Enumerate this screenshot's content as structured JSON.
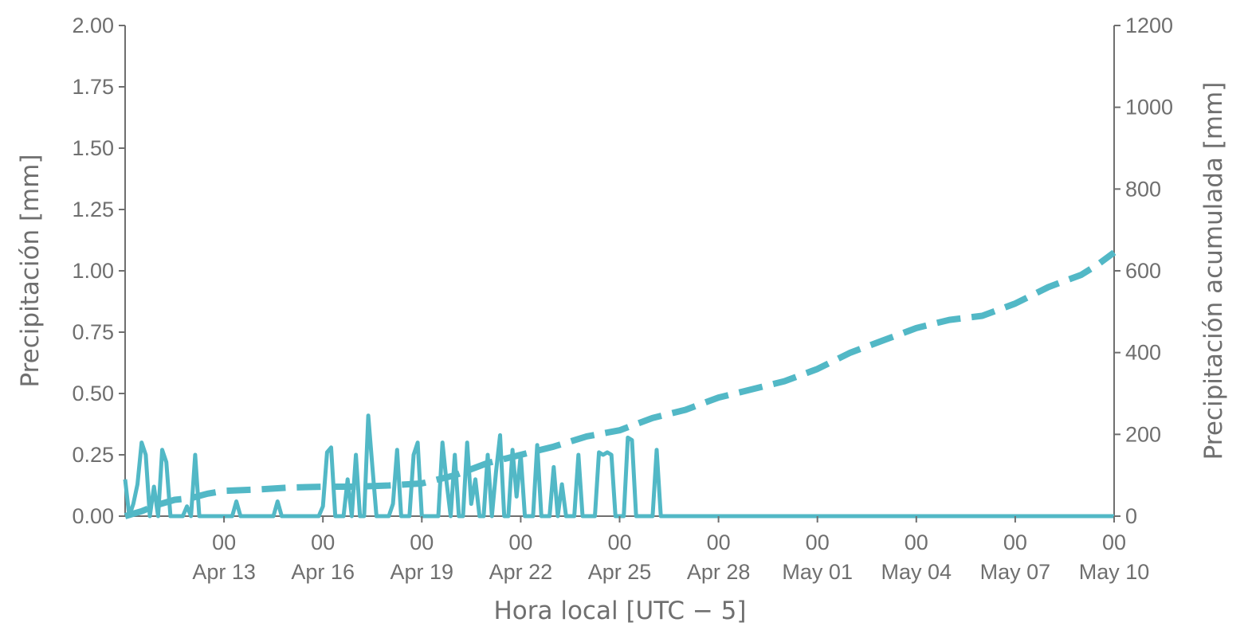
{
  "chart_data": {
    "type": "line",
    "title": "",
    "xlabel": "Hora local [UTC − 5]",
    "ylabel": "Precipitación [mm]",
    "y2label": "Precipitación acumulada [mm]",
    "x_range": [
      "2025-04-10T00:00",
      "2025-05-10T00:00"
    ],
    "ylim": [
      0,
      2.0
    ],
    "y2lim": [
      0,
      1200
    ],
    "grid": false,
    "legend": "none",
    "color": "#52b8c6",
    "x_ticks": [
      {
        "x": "2025-04-13T00:00",
        "hour": "00",
        "date": "Apr 13"
      },
      {
        "x": "2025-04-16T00:00",
        "hour": "00",
        "date": "Apr 16"
      },
      {
        "x": "2025-04-19T00:00",
        "hour": "00",
        "date": "Apr 19"
      },
      {
        "x": "2025-04-22T00:00",
        "hour": "00",
        "date": "Apr 22"
      },
      {
        "x": "2025-04-25T00:00",
        "hour": "00",
        "date": "Apr 25"
      },
      {
        "x": "2025-04-28T00:00",
        "hour": "00",
        "date": "Apr 28"
      },
      {
        "x": "2025-05-01T00:00",
        "hour": "00",
        "date": "May 01"
      },
      {
        "x": "2025-05-04T00:00",
        "hour": "00",
        "date": "May 04"
      },
      {
        "x": "2025-05-07T00:00",
        "hour": "00",
        "date": "May 07"
      },
      {
        "x": "2025-05-10T00:00",
        "hour": "00",
        "date": "May 10"
      }
    ],
    "y_ticks": [
      "0.00",
      "0.25",
      "0.50",
      "0.75",
      "1.00",
      "1.25",
      "1.50",
      "1.75",
      "2.00"
    ],
    "y2_ticks": [
      "0",
      "200",
      "400",
      "600",
      "800",
      "1000",
      "1200"
    ],
    "series": [
      {
        "axis": "left",
        "style": "solid",
        "x": [
          "2025-04-10T00:00",
          "2025-04-10T03:00",
          "2025-04-10T06:00",
          "2025-04-10T09:00",
          "2025-04-10T12:00",
          "2025-04-10T15:00",
          "2025-04-10T18:00",
          "2025-04-10T21:00",
          "2025-04-11T00:00",
          "2025-04-11T03:00",
          "2025-04-11T06:00",
          "2025-04-11T09:00",
          "2025-04-11T12:00",
          "2025-04-11T15:00",
          "2025-04-11T18:00",
          "2025-04-11T21:00",
          "2025-04-12T00:00",
          "2025-04-12T03:00",
          "2025-04-12T06:00",
          "2025-04-12T09:00",
          "2025-04-12T12:00",
          "2025-04-12T15:00",
          "2025-04-12T18:00",
          "2025-04-12T21:00",
          "2025-04-13T00:00",
          "2025-04-13T03:00",
          "2025-04-13T06:00",
          "2025-04-13T09:00",
          "2025-04-13T12:00",
          "2025-04-13T15:00",
          "2025-04-13T18:00",
          "2025-04-13T21:00",
          "2025-04-14T00:00",
          "2025-04-14T03:00",
          "2025-04-14T06:00",
          "2025-04-14T09:00",
          "2025-04-14T12:00",
          "2025-04-14T15:00",
          "2025-04-14T18:00",
          "2025-04-14T21:00",
          "2025-04-15T00:00",
          "2025-04-15T03:00",
          "2025-04-15T06:00",
          "2025-04-15T09:00",
          "2025-04-15T12:00",
          "2025-04-15T15:00",
          "2025-04-15T18:00",
          "2025-04-15T21:00",
          "2025-04-16T00:00",
          "2025-04-16T03:00",
          "2025-04-16T06:00",
          "2025-04-16T09:00",
          "2025-04-16T12:00",
          "2025-04-16T15:00",
          "2025-04-16T18:00",
          "2025-04-16T21:00",
          "2025-04-17T00:00",
          "2025-04-17T03:00",
          "2025-04-17T06:00",
          "2025-04-17T09:00",
          "2025-04-17T12:00",
          "2025-04-17T15:00",
          "2025-04-17T18:00",
          "2025-04-17T21:00",
          "2025-04-18T00:00",
          "2025-04-18T03:00",
          "2025-04-18T06:00",
          "2025-04-18T09:00",
          "2025-04-18T12:00",
          "2025-04-18T15:00",
          "2025-04-18T18:00",
          "2025-04-18T21:00",
          "2025-04-19T00:00",
          "2025-04-19T03:00",
          "2025-04-19T06:00",
          "2025-04-19T09:00",
          "2025-04-19T12:00",
          "2025-04-19T15:00",
          "2025-04-19T18:00",
          "2025-04-19T21:00",
          "2025-04-20T00:00",
          "2025-04-20T03:00",
          "2025-04-20T06:00",
          "2025-04-20T09:00",
          "2025-04-20T12:00",
          "2025-04-20T15:00",
          "2025-04-20T18:00",
          "2025-04-20T21:00",
          "2025-04-21T00:00",
          "2025-04-21T03:00",
          "2025-04-21T06:00",
          "2025-04-21T09:00",
          "2025-04-21T12:00",
          "2025-04-21T15:00",
          "2025-04-21T18:00",
          "2025-04-21T21:00",
          "2025-04-22T00:00",
          "2025-04-22T03:00",
          "2025-04-22T06:00",
          "2025-04-22T09:00",
          "2025-04-22T12:00",
          "2025-04-22T15:00",
          "2025-04-22T18:00",
          "2025-04-22T21:00",
          "2025-04-23T00:00",
          "2025-04-23T03:00",
          "2025-04-23T06:00",
          "2025-04-23T09:00",
          "2025-04-23T12:00",
          "2025-04-23T15:00",
          "2025-04-23T18:00",
          "2025-04-23T21:00",
          "2025-04-24T00:00",
          "2025-04-24T03:00",
          "2025-04-24T06:00",
          "2025-04-24T09:00",
          "2025-04-24T12:00",
          "2025-04-24T15:00",
          "2025-04-24T18:00",
          "2025-04-24T21:00",
          "2025-04-25T00:00",
          "2025-04-25T03:00",
          "2025-04-25T06:00",
          "2025-04-25T09:00",
          "2025-04-25T12:00",
          "2025-04-25T15:00",
          "2025-04-25T18:00",
          "2025-04-25T21:00",
          "2025-04-26T00:00",
          "2025-04-26T03:00",
          "2025-04-26T06:00",
          "2025-04-26T09:00",
          "2025-04-26T12:00",
          "2025-04-26T15:00",
          "2025-04-26T18:00",
          "2025-04-26T21:00",
          "2025-04-27T00:00",
          "2025-04-27T03:00",
          "2025-04-27T06:00",
          "2025-04-27T09:00",
          "2025-04-27T12:00",
          "2025-04-27T15:00",
          "2025-04-27T18:00",
          "2025-04-27T21:00",
          "2025-04-28T00:00",
          "2025-04-28T03:00",
          "2025-04-28T06:00",
          "2025-04-28T09:00",
          "2025-04-28T12:00",
          "2025-04-28T15:00",
          "2025-04-28T18:00",
          "2025-04-28T21:00",
          "2025-04-29T00:00",
          "2025-04-29T03:00",
          "2025-04-29T06:00",
          "2025-04-29T09:00",
          "2025-04-29T12:00",
          "2025-04-29T15:00",
          "2025-04-29T18:00",
          "2025-04-29T21:00",
          "2025-04-30T00:00",
          "2025-04-30T03:00",
          "2025-04-30T06:00",
          "2025-04-30T09:00",
          "2025-04-30T12:00",
          "2025-04-30T15:00",
          "2025-04-30T18:00",
          "2025-04-30T21:00",
          "2025-05-01T00:00",
          "2025-05-01T03:00",
          "2025-05-01T06:00",
          "2025-05-01T09:00",
          "2025-05-01T12:00",
          "2025-05-01T15:00",
          "2025-05-01T18:00",
          "2025-05-01T21:00",
          "2025-05-02T00:00",
          "2025-05-02T03:00",
          "2025-05-02T06:00",
          "2025-05-02T09:00",
          "2025-05-02T12:00",
          "2025-05-02T15:00",
          "2025-05-02T18:00",
          "2025-05-02T21:00",
          "2025-05-03T00:00",
          "2025-05-03T03:00",
          "2025-05-03T06:00",
          "2025-05-03T09:00",
          "2025-05-03T12:00",
          "2025-05-03T15:00",
          "2025-05-03T18:00",
          "2025-05-03T21:00",
          "2025-05-04T00:00",
          "2025-05-04T03:00",
          "2025-05-04T06:00",
          "2025-05-04T09:00",
          "2025-05-04T12:00",
          "2025-05-04T15:00",
          "2025-05-04T18:00",
          "2025-05-04T21:00",
          "2025-05-05T00:00",
          "2025-05-05T03:00",
          "2025-05-05T06:00",
          "2025-05-05T09:00",
          "2025-05-05T12:00",
          "2025-05-05T15:00",
          "2025-05-05T18:00",
          "2025-05-05T21:00",
          "2025-05-06T00:00",
          "2025-05-06T03:00",
          "2025-05-06T06:00",
          "2025-05-06T09:00",
          "2025-05-06T12:00",
          "2025-05-06T15:00",
          "2025-05-06T18:00",
          "2025-05-06T21:00",
          "2025-05-07T00:00",
          "2025-05-07T03:00",
          "2025-05-07T06:00",
          "2025-05-07T09:00",
          "2025-05-07T12:00",
          "2025-05-07T15:00",
          "2025-05-07T18:00",
          "2025-05-07T21:00",
          "2025-05-08T00:00",
          "2025-05-08T03:00",
          "2025-05-08T06:00",
          "2025-05-08T09:00",
          "2025-05-08T12:00",
          "2025-05-08T15:00",
          "2025-05-08T18:00",
          "2025-05-08T21:00",
          "2025-05-09T00:00",
          "2025-05-09T03:00",
          "2025-05-09T06:00",
          "2025-05-09T09:00",
          "2025-05-09T12:00",
          "2025-05-09T15:00",
          "2025-05-09T18:00",
          "2025-05-09T21:00",
          "2025-05-10T00:00"
        ],
        "values": [
          0.15,
          0.0,
          0.05,
          0.13,
          0.3,
          0.25,
          0.0,
          0.12,
          0.0,
          0.27,
          0.22,
          0.0,
          0.0,
          0.0,
          0.0,
          0.04,
          0.0,
          0.25,
          0.0,
          0.0,
          0.0,
          0.0,
          0.0,
          0.0,
          0.0,
          0.0,
          0.0,
          0.06,
          0.0,
          0.0,
          0.0,
          0.0,
          0.0,
          0.0,
          0.0,
          0.0,
          0.0,
          0.06,
          0.0,
          0.0,
          0.0,
          0.0,
          0.0,
          0.0,
          0.0,
          0.0,
          0.0,
          0.0,
          0.04,
          0.26,
          0.28,
          0.0,
          0.0,
          0.0,
          0.15,
          0.0,
          0.25,
          0.0,
          0.0,
          0.41,
          0.2,
          0.0,
          0.0,
          0.0,
          0.0,
          0.05,
          0.27,
          0.0,
          0.0,
          0.0,
          0.25,
          0.3,
          0.0,
          0.0,
          0.0,
          0.0,
          0.0,
          0.3,
          0.14,
          0.0,
          0.25,
          0.0,
          0.0,
          0.3,
          0.05,
          0.15,
          0.0,
          0.0,
          0.25,
          0.0,
          0.18,
          0.33,
          0.0,
          0.0,
          0.27,
          0.08,
          0.25,
          0.0,
          0.0,
          0.0,
          0.29,
          0.0,
          0.0,
          0.0,
          0.2,
          0.0,
          0.13,
          0.0,
          0.0,
          0.0,
          0.25,
          0.0,
          0.0,
          0.0,
          0.0,
          0.26,
          0.25,
          0.26,
          0.25,
          0.0,
          0.0,
          0.0,
          0.32,
          0.31,
          0.0,
          0.0,
          0.0,
          0.0,
          0.0,
          0.27,
          0.0,
          0.0,
          0.0,
          0.0,
          0.0,
          0.0,
          0.0,
          0.0,
          0.0,
          0.0,
          0.0,
          0.0,
          0.0,
          0.0,
          0.0,
          0.0,
          0.0,
          0.0,
          0.0,
          0.0,
          0.0,
          0.0,
          0.0,
          0.0,
          0.0,
          0.0,
          0.0,
          0.0,
          0.0,
          0.0,
          0.0,
          0.0,
          0.0,
          0.0,
          0.0,
          0.0,
          0.0,
          0.0,
          0.0,
          0.0,
          0.0,
          0.0,
          0.0,
          0.0,
          0.0,
          0.0,
          0.0,
          0.0,
          0.0,
          0.0,
          0.0,
          0.0,
          0.0,
          0.0,
          0.0,
          0.0,
          0.0,
          0.0,
          0.0,
          0.0,
          0.0,
          0.0,
          0.0,
          0.0,
          0.0,
          0.0,
          0.0,
          0.0,
          0.0,
          0.0,
          0.0,
          0.0,
          0.0,
          0.0,
          0.0,
          0.0,
          0.0,
          0.0,
          0.0,
          0.0,
          0.0,
          0.0,
          0.0,
          0.0,
          0.0,
          0.0,
          0.0,
          0.0,
          0.0,
          0.0,
          0.0,
          0.0,
          0.0,
          0.0,
          0.0,
          0.0,
          0.0,
          0.0,
          0.0,
          0.0,
          0.0,
          0.0,
          0.0,
          0.0,
          0.0,
          0.0,
          0.0,
          0.0,
          0.0,
          0.0,
          0.0
        ]
      },
      {
        "axis": "right",
        "style": "dashed",
        "x": [
          "2025-04-10T00:00",
          "2025-04-10T12:00",
          "2025-04-11T00:00",
          "2025-04-11T12:00",
          "2025-04-12T00:00",
          "2025-04-12T12:00",
          "2025-04-13T00:00",
          "2025-04-14T00:00",
          "2025-04-15T00:00",
          "2025-04-16T00:00",
          "2025-04-17T00:00",
          "2025-04-18T00:00",
          "2025-04-19T00:00",
          "2025-04-20T00:00",
          "2025-04-21T00:00",
          "2025-04-22T00:00",
          "2025-04-23T00:00",
          "2025-04-24T00:00",
          "2025-04-25T00:00",
          "2025-04-26T00:00",
          "2025-04-27T00:00",
          "2025-04-28T00:00",
          "2025-04-29T00:00",
          "2025-04-30T00:00",
          "2025-05-01T00:00",
          "2025-05-02T00:00",
          "2025-05-03T00:00",
          "2025-05-04T00:00",
          "2025-05-05T00:00",
          "2025-05-06T00:00",
          "2025-05-07T00:00",
          "2025-05-08T00:00",
          "2025-05-09T00:00",
          "2025-05-09T12:00",
          "2025-05-10T00:00"
        ],
        "values": [
          0,
          12,
          28,
          40,
          44,
          55,
          62,
          65,
          70,
          72,
          72,
          75,
          80,
          100,
          130,
          150,
          170,
          195,
          210,
          240,
          260,
          290,
          310,
          330,
          360,
          400,
          430,
          460,
          480,
          490,
          520,
          560,
          590,
          615,
          645
        ]
      }
    ]
  }
}
